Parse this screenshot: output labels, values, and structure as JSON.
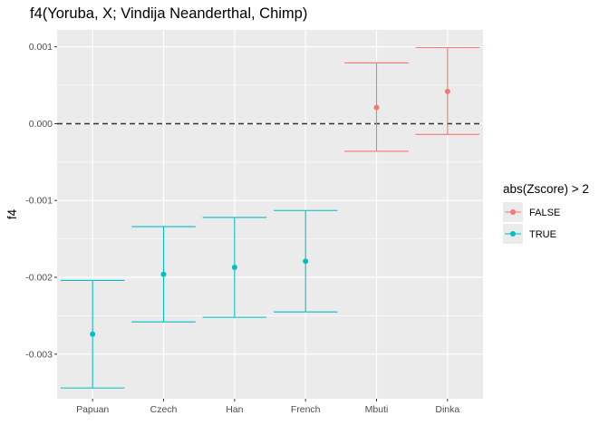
{
  "chart_data": {
    "type": "errorbar",
    "title": "f4(Yoruba, X; Vindija Neanderthal, Chimp)",
    "xlabel": "",
    "ylabel": "f4",
    "ylim": [
      -0.00358,
      0.00122
    ],
    "yticks": [
      0.001,
      0.0,
      -0.001,
      -0.002,
      -0.003
    ],
    "ytick_labels": [
      "0.001",
      "0.000",
      "-0.001",
      "-0.002",
      "-0.003"
    ],
    "categories": [
      "Papuan",
      "Czech",
      "Han",
      "French",
      "Mbuti",
      "Dinka"
    ],
    "points": [
      {
        "x": "Papuan",
        "y": -0.00274,
        "ymin": -0.00344,
        "ymax": -0.00204,
        "group": "TRUE"
      },
      {
        "x": "Czech",
        "y": -0.00196,
        "ymin": -0.00258,
        "ymax": -0.00134,
        "group": "TRUE"
      },
      {
        "x": "Han",
        "y": -0.00187,
        "ymin": -0.00252,
        "ymax": -0.00122,
        "group": "TRUE"
      },
      {
        "x": "French",
        "y": -0.00179,
        "ymin": -0.00245,
        "ymax": -0.00113,
        "group": "TRUE"
      },
      {
        "x": "Mbuti",
        "y": 0.00021,
        "ymin": -0.00036,
        "ymax": 0.00079,
        "group": "FALSE"
      },
      {
        "x": "Dinka",
        "y": 0.00042,
        "ymin": -0.00014,
        "ymax": 0.00099,
        "group": "FALSE"
      }
    ],
    "hline": 0,
    "grid": true,
    "legend": {
      "title": "abs(Zscore) > 2",
      "position": "right",
      "entries": [
        {
          "label": "FALSE",
          "color": "#F8766D"
        },
        {
          "label": "TRUE",
          "color": "#00BFC4"
        }
      ]
    },
    "colors": {
      "FALSE": "#F8766D",
      "TRUE": "#00BFC4",
      "panel": "#EBEBEB",
      "grid": "#FFFFFF",
      "hline": "#333333"
    }
  }
}
